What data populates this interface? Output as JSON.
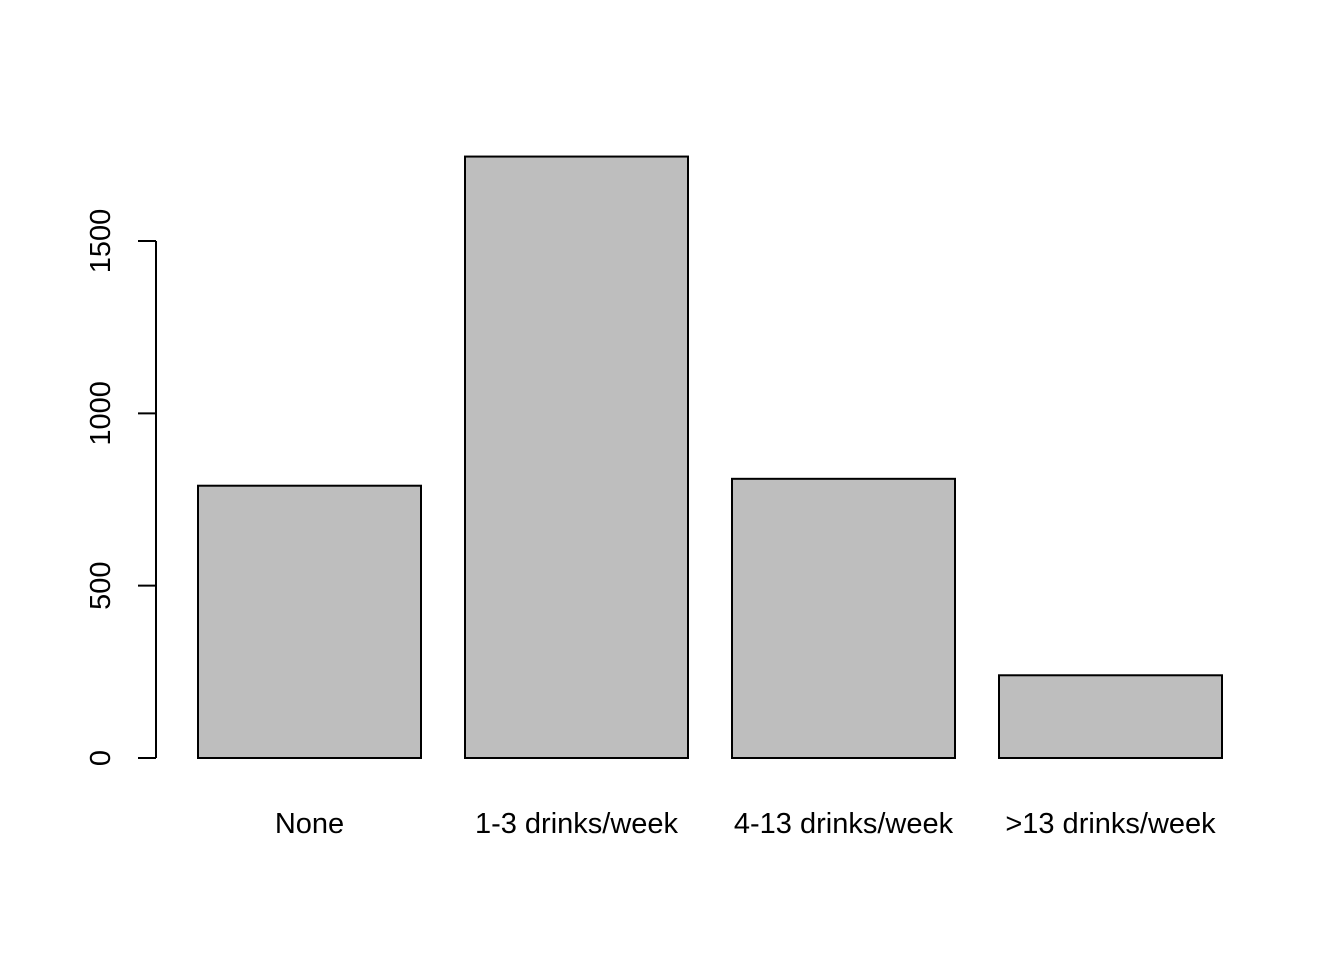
{
  "chart_data": {
    "type": "bar",
    "title": "",
    "xlabel": "",
    "ylabel": "",
    "categories": [
      "None",
      "1-3 drinks/week",
      "4-13 drinks/week",
      ">13 drinks/week"
    ],
    "values": [
      790,
      1745,
      810,
      240
    ],
    "ylim": [
      0,
      1800
    ],
    "yticks": [
      0,
      500,
      1000,
      1500
    ],
    "ytick_labels": [
      "0",
      "500",
      "1000",
      "1500"
    ],
    "grid": false,
    "legend": "none",
    "bar_color": "#bebebe",
    "border_color": "#000000"
  }
}
